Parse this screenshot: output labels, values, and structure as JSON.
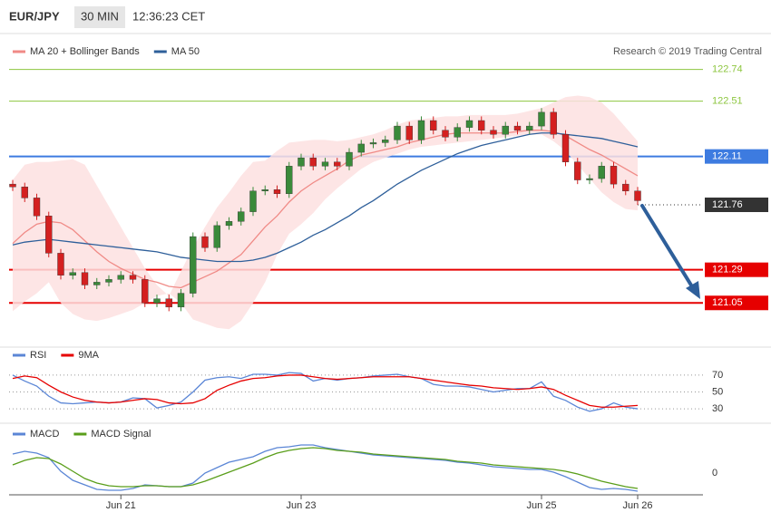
{
  "header": {
    "symbol": "EUR/JPY",
    "interval": "30 MIN",
    "time": "12:36:23 CET",
    "copyright": "Research © 2019 Trading Central"
  },
  "chart_data": [
    {
      "type": "candlestick",
      "categories": [
        null,
        null,
        null,
        null,
        null,
        null,
        null,
        null,
        null,
        "Jun 21",
        null,
        null,
        null,
        null,
        null,
        null,
        null,
        null,
        null,
        null,
        null,
        null,
        null,
        null,
        "Jun 23",
        null,
        null,
        null,
        null,
        null,
        null,
        null,
        null,
        null,
        null,
        null,
        null,
        null,
        null,
        null,
        null,
        null,
        null,
        null,
        "Jun 25",
        null,
        null,
        null,
        null,
        null,
        null,
        null,
        "Jun 26"
      ],
      "open": [
        121.91,
        121.89,
        121.81,
        121.68,
        121.41,
        121.25,
        121.27,
        121.18,
        121.2,
        121.22,
        121.25,
        121.22,
        121.05,
        121.08,
        121.02,
        121.12,
        121.53,
        121.45,
        121.61,
        121.64,
        121.71,
        121.86,
        121.87,
        121.84,
        122.04,
        122.1,
        122.04,
        122.07,
        122.04,
        122.14,
        122.2,
        122.21,
        122.23,
        122.33,
        122.23,
        122.37,
        122.3,
        122.25,
        122.32,
        122.37,
        122.3,
        122.27,
        122.33,
        122.3,
        122.33,
        122.43,
        122.27,
        122.07,
        121.94,
        121.95,
        122.04,
        121.91,
        121.86
      ],
      "high": [
        121.94,
        121.92,
        121.84,
        121.71,
        121.44,
        121.3,
        121.3,
        121.23,
        121.25,
        121.28,
        121.28,
        121.25,
        121.11,
        121.11,
        121.15,
        121.56,
        121.56,
        121.64,
        121.67,
        121.74,
        121.89,
        121.9,
        121.9,
        122.07,
        122.13,
        122.13,
        122.1,
        122.1,
        122.17,
        122.23,
        122.24,
        122.26,
        122.36,
        122.36,
        122.4,
        122.4,
        122.33,
        122.35,
        122.4,
        122.4,
        122.33,
        122.36,
        122.36,
        122.36,
        122.46,
        122.46,
        122.3,
        122.1,
        121.98,
        122.07,
        122.07,
        121.94,
        121.89
      ],
      "low": [
        121.86,
        121.78,
        121.65,
        121.38,
        121.22,
        121.22,
        121.15,
        121.15,
        121.17,
        121.19,
        121.19,
        121.02,
        121.02,
        120.99,
        120.99,
        121.09,
        121.42,
        121.42,
        121.58,
        121.61,
        121.68,
        121.83,
        121.81,
        121.81,
        122.01,
        122.01,
        122.01,
        122.01,
        122.01,
        122.11,
        122.17,
        122.18,
        122.2,
        122.2,
        122.2,
        122.27,
        122.22,
        122.22,
        122.29,
        122.27,
        122.24,
        122.24,
        122.27,
        122.27,
        122.3,
        122.24,
        122.04,
        121.91,
        121.91,
        121.92,
        121.88,
        121.83,
        121.76
      ],
      "close": [
        121.89,
        121.81,
        121.68,
        121.41,
        121.25,
        121.27,
        121.18,
        121.2,
        121.22,
        121.25,
        121.22,
        121.05,
        121.08,
        121.02,
        121.12,
        121.53,
        121.45,
        121.61,
        121.64,
        121.71,
        121.86,
        121.87,
        121.84,
        122.04,
        122.1,
        122.04,
        122.07,
        122.04,
        122.14,
        122.2,
        122.21,
        122.23,
        122.33,
        122.23,
        122.37,
        122.3,
        122.25,
        122.32,
        122.37,
        122.3,
        122.27,
        122.33,
        122.3,
        122.33,
        122.43,
        122.27,
        122.07,
        121.94,
        121.95,
        122.04,
        121.91,
        121.86,
        121.79
      ],
      "up_color": "#3a8a3a",
      "down_color": "#d42020",
      "series": [
        {
          "name": "MA 20 + Bollinger Bands",
          "color": "#f08a86",
          "band_color": "#fde0e0",
          "values": [
            121.48,
            121.56,
            121.62,
            121.64,
            121.63,
            121.58,
            121.5,
            121.42,
            121.35,
            121.3,
            121.26,
            121.22,
            121.2,
            121.17,
            121.16,
            121.2,
            121.24,
            121.28,
            121.34,
            121.4,
            121.5,
            121.6,
            121.68,
            121.78,
            121.86,
            121.92,
            121.97,
            122.02,
            122.08,
            122.12,
            122.14,
            122.16,
            122.18,
            122.21,
            122.23,
            122.25,
            122.27,
            122.28,
            122.28,
            122.28,
            122.28,
            122.28,
            122.29,
            122.3,
            122.3,
            122.29,
            122.26,
            122.21,
            122.16,
            122.12,
            122.07,
            122.02,
            121.97
          ],
          "band_upper": [
            121.94,
            122.05,
            122.07,
            122.07,
            122.08,
            122.09,
            122.05,
            121.9,
            121.75,
            121.6,
            121.45,
            121.3,
            121.18,
            121.1,
            121.28,
            121.45,
            121.6,
            121.74,
            121.85,
            121.97,
            122.07,
            122.08,
            122.15,
            122.21,
            122.22,
            122.23,
            122.23,
            122.22,
            122.23,
            122.25,
            122.27,
            122.3,
            122.34,
            122.37,
            122.38,
            122.39,
            122.4,
            122.4,
            122.41,
            122.41,
            122.41,
            122.41,
            122.42,
            122.44,
            122.46,
            122.5,
            122.54,
            122.55,
            122.54,
            122.5,
            122.42,
            122.32,
            122.22
          ],
          "band_lower": [
            120.99,
            121.06,
            121.12,
            121.2,
            121.05,
            120.97,
            120.93,
            120.92,
            120.94,
            120.97,
            121.0,
            121.05,
            121.1,
            121.12,
            121.05,
            120.93,
            120.9,
            120.87,
            120.86,
            120.92,
            121.05,
            121.2,
            121.4,
            121.55,
            121.62,
            121.7,
            121.8,
            121.88,
            121.95,
            122.02,
            122.07,
            122.1,
            122.13,
            122.16,
            122.18,
            122.19,
            122.2,
            122.21,
            122.22,
            122.23,
            122.24,
            122.25,
            122.26,
            122.27,
            122.27,
            122.22,
            122.15,
            122.05,
            121.95,
            121.85,
            121.78,
            121.73,
            121.72
          ]
        },
        {
          "name": "MA 50",
          "color": "#2e5f9a",
          "values": [
            121.47,
            121.49,
            121.5,
            121.51,
            121.5,
            121.49,
            121.48,
            121.47,
            121.46,
            121.45,
            121.44,
            121.43,
            121.42,
            121.4,
            121.38,
            121.37,
            121.36,
            121.35,
            121.35,
            121.35,
            121.36,
            121.38,
            121.41,
            121.45,
            121.49,
            121.54,
            121.58,
            121.63,
            121.68,
            121.74,
            121.79,
            121.85,
            121.91,
            121.96,
            122.01,
            122.05,
            122.09,
            122.13,
            122.16,
            122.19,
            122.21,
            122.23,
            122.25,
            122.27,
            122.28,
            122.28,
            122.27,
            122.26,
            122.25,
            122.24,
            122.22,
            122.2,
            122.18
          ]
        }
      ],
      "levels": [
        {
          "value": 122.74,
          "color": "#8dc63f",
          "line": "solid",
          "boxed": false
        },
        {
          "value": 122.51,
          "color": "#8dc63f",
          "line": "solid",
          "boxed": false
        },
        {
          "value": 122.11,
          "color": "#3d7be0",
          "line": "solid",
          "boxed": true
        },
        {
          "value": 121.76,
          "color": "#333333",
          "line": "dotted",
          "boxed": true
        },
        {
          "value": 121.29,
          "color": "#e60000",
          "line": "solid",
          "boxed": true
        },
        {
          "value": 121.05,
          "color": "#e60000",
          "line": "solid",
          "boxed": true
        }
      ],
      "ylim": [
        120.75,
        122.98
      ]
    },
    {
      "type": "line",
      "series": [
        {
          "name": "RSI",
          "color": "#5b86d6",
          "values": [
            70,
            63,
            57,
            45,
            37,
            36,
            37,
            38,
            37,
            38,
            43,
            42,
            31,
            34,
            38,
            50,
            64,
            67,
            68,
            66,
            71,
            71,
            70,
            73,
            72,
            63,
            66,
            64,
            66,
            67,
            69,
            70,
            71,
            68,
            66,
            59,
            57,
            57,
            56,
            53,
            50,
            52,
            54,
            54,
            62,
            45,
            40,
            32,
            27,
            30,
            37,
            32,
            30
          ]
        },
        {
          "name": "9MA",
          "color": "#e60000",
          "values": [
            66,
            69,
            67,
            58,
            50,
            44,
            40,
            38,
            37,
            38,
            40,
            42,
            41,
            37,
            36,
            37,
            42,
            52,
            58,
            63,
            66,
            67,
            69,
            70,
            70,
            68,
            66,
            65,
            66,
            67,
            68,
            68,
            68,
            68,
            66,
            64,
            62,
            60,
            58,
            57,
            55,
            54,
            53,
            54,
            56,
            53,
            46,
            40,
            34,
            32,
            32,
            33,
            34
          ]
        }
      ],
      "ylim": [
        15,
        85
      ],
      "yticks": [
        30,
        50,
        70
      ],
      "grid": true
    },
    {
      "type": "line",
      "series": [
        {
          "name": "MACD",
          "color": "#5b86d6",
          "values": [
            0.021,
            0.024,
            0.022,
            0.017,
            0.002,
            -0.008,
            -0.013,
            -0.018,
            -0.019,
            -0.019,
            -0.017,
            -0.013,
            -0.014,
            -0.015,
            -0.015,
            -0.011,
            0,
            0.006,
            0.012,
            0.015,
            0.018,
            0.024,
            0.028,
            0.029,
            0.031,
            0.031,
            0.028,
            0.026,
            0.024,
            0.022,
            0.02,
            0.019,
            0.018,
            0.017,
            0.016,
            0.015,
            0.014,
            0.012,
            0.011,
            0.009,
            0.007,
            0.006,
            0.005,
            0.004,
            0.004,
            0.001,
            -0.004,
            -0.01,
            -0.016,
            -0.018,
            -0.017,
            -0.018,
            -0.02
          ]
        },
        {
          "name": "MACD Signal",
          "color": "#5a9e1a",
          "values": [
            0.009,
            0.014,
            0.017,
            0.016,
            0.01,
            0.002,
            -0.006,
            -0.011,
            -0.014,
            -0.015,
            -0.015,
            -0.014,
            -0.014,
            -0.015,
            -0.015,
            -0.013,
            -0.009,
            -0.004,
            0.001,
            0.006,
            0.011,
            0.017,
            0.022,
            0.025,
            0.027,
            0.028,
            0.027,
            0.025,
            0.024,
            0.023,
            0.021,
            0.02,
            0.019,
            0.018,
            0.017,
            0.016,
            0.015,
            0.013,
            0.012,
            0.011,
            0.009,
            0.008,
            0.007,
            0.006,
            0.005,
            0.004,
            0.002,
            -0.001,
            -0.005,
            -0.009,
            -0.012,
            -0.015,
            -0.017
          ]
        }
      ],
      "ylim": [
        -0.028,
        0.052
      ],
      "yticks": [
        0
      ],
      "grid": false
    }
  ]
}
